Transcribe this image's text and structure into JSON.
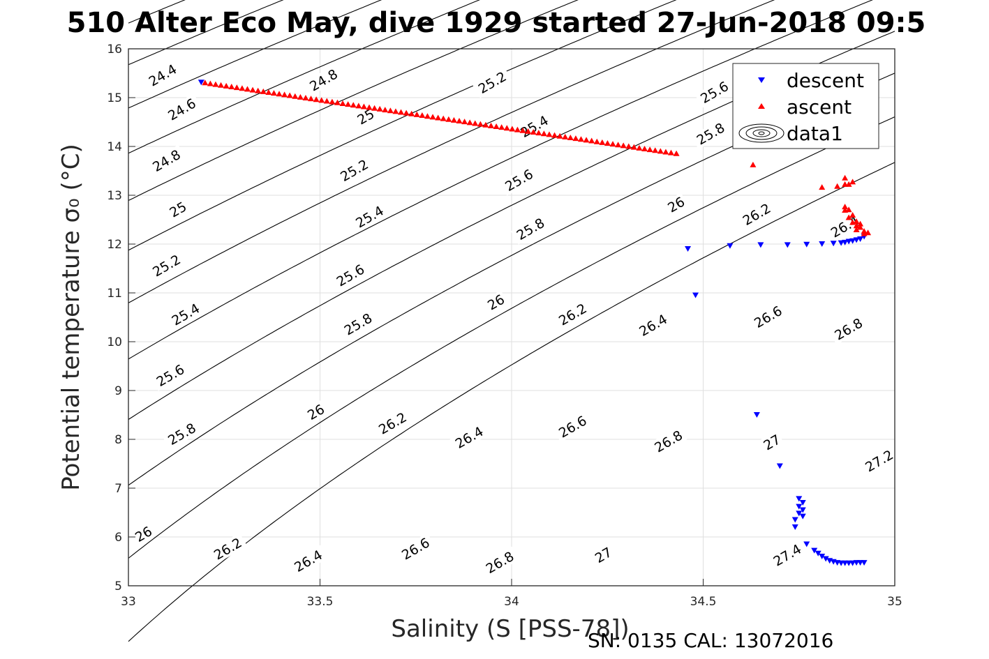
{
  "title": "510 Alter Eco May, dive 1929 started 27-Jun-2018 09:5",
  "footer": "SN: 0135  CAL: 13072016",
  "chart_data": {
    "type": "scatter",
    "title": "510 Alter Eco May, dive 1929 started 27-Jun-2018 09:5",
    "xlabel": "Salinity (S [PSS-78])",
    "ylabel": "Potential temperature σ₀ (°C)",
    "xlim": [
      33,
      35
    ],
    "ylim": [
      5,
      16
    ],
    "x_ticks": [
      33,
      33.5,
      34,
      34.5,
      35
    ],
    "x_tick_labels": [
      "33",
      "33.5",
      "34",
      "34.5",
      "35"
    ],
    "y_ticks": [
      5,
      6,
      7,
      8,
      9,
      10,
      11,
      12,
      13,
      14,
      15,
      16
    ],
    "y_tick_labels": [
      "5",
      "6",
      "7",
      "8",
      "9",
      "10",
      "11",
      "12",
      "13",
      "14",
      "15",
      "16"
    ],
    "grid": true,
    "legend_position": "top-right",
    "legend": [
      "descent",
      "ascent",
      "data1"
    ],
    "series": [
      {
        "name": "descent",
        "marker": "triangle-down",
        "color": "#0000ff",
        "points": [
          [
            33.19,
            15.31
          ],
          [
            34.46,
            11.9
          ],
          [
            34.48,
            10.95
          ],
          [
            34.57,
            11.96
          ],
          [
            34.65,
            11.98
          ],
          [
            34.72,
            11.98
          ],
          [
            34.77,
            11.99
          ],
          [
            34.81,
            12.0
          ],
          [
            34.84,
            12.01
          ],
          [
            34.86,
            12.02
          ],
          [
            34.87,
            12.03
          ],
          [
            34.88,
            12.05
          ],
          [
            34.89,
            12.06
          ],
          [
            34.9,
            12.08
          ],
          [
            34.91,
            12.1
          ],
          [
            34.92,
            12.15
          ],
          [
            34.64,
            8.5
          ],
          [
            34.7,
            7.45
          ],
          [
            34.75,
            6.78
          ],
          [
            34.76,
            6.7
          ],
          [
            34.75,
            6.62
          ],
          [
            34.76,
            6.55
          ],
          [
            34.75,
            6.48
          ],
          [
            34.76,
            6.42
          ],
          [
            34.74,
            6.35
          ],
          [
            34.74,
            6.2
          ],
          [
            34.77,
            5.85
          ],
          [
            34.79,
            5.72
          ],
          [
            34.8,
            5.66
          ],
          [
            34.81,
            5.6
          ],
          [
            34.82,
            5.55
          ],
          [
            34.83,
            5.51
          ],
          [
            34.84,
            5.49
          ],
          [
            34.85,
            5.47
          ],
          [
            34.86,
            5.46
          ],
          [
            34.87,
            5.46
          ],
          [
            34.88,
            5.46
          ],
          [
            34.89,
            5.46
          ],
          [
            34.9,
            5.47
          ],
          [
            34.91,
            5.47
          ],
          [
            34.92,
            5.47
          ]
        ]
      },
      {
        "name": "ascent",
        "marker": "triangle-up",
        "color": "#ff0000",
        "line_from": [
          33.2,
          15.31
        ],
        "line_to": [
          34.43,
          13.86
        ],
        "line_count": 90,
        "points": [
          [
            34.63,
            13.63
          ],
          [
            34.81,
            13.17
          ],
          [
            34.85,
            13.19
          ],
          [
            34.87,
            13.23
          ],
          [
            34.87,
            13.36
          ],
          [
            34.89,
            13.28
          ],
          [
            34.88,
            13.23
          ],
          [
            34.87,
            12.77
          ],
          [
            34.88,
            12.71
          ],
          [
            34.87,
            12.7
          ],
          [
            34.89,
            12.6
          ],
          [
            34.88,
            12.55
          ],
          [
            34.89,
            12.45
          ],
          [
            34.9,
            12.38
          ],
          [
            34.9,
            12.3
          ],
          [
            34.91,
            12.35
          ],
          [
            34.92,
            12.27
          ],
          [
            34.92,
            12.22
          ],
          [
            34.93,
            12.24
          ],
          [
            34.91,
            12.42
          ],
          [
            34.9,
            12.47
          ]
        ]
      }
    ],
    "density_contours": {
      "levels": [
        24.4,
        24.6,
        24.8,
        25,
        25.2,
        25.4,
        25.6,
        25.8,
        26,
        26.2,
        26.4,
        26.6,
        26.8,
        27,
        27.2,
        27.4
      ],
      "labels": [
        {
          "text": "24.4",
          "s": 33.09,
          "t": 15.45
        },
        {
          "text": "24.6",
          "s": 33.14,
          "t": 14.75
        },
        {
          "text": "24.8",
          "s": 33.1,
          "t": 13.7
        },
        {
          "text": "25",
          "s": 33.13,
          "t": 12.7
        },
        {
          "text": "25.2",
          "s": 33.1,
          "t": 11.55
        },
        {
          "text": "25.4",
          "s": 33.15,
          "t": 10.55
        },
        {
          "text": "25.6",
          "s": 33.11,
          "t": 9.3
        },
        {
          "text": "25.8",
          "s": 33.14,
          "t": 8.1
        },
        {
          "text": "26",
          "s": 33.04,
          "t": 6.05
        },
        {
          "text": "26.2",
          "s": 33.26,
          "t": 5.75
        },
        {
          "text": "26.4",
          "s": 33.47,
          "t": 5.5
        },
        {
          "text": "26.6",
          "s": 33.75,
          "t": 5.75
        },
        {
          "text": "26.8",
          "s": 33.97,
          "t": 5.47
        },
        {
          "text": "27",
          "s": 34.24,
          "t": 5.62
        },
        {
          "text": "27.4",
          "s": 34.72,
          "t": 5.62
        },
        {
          "text": "24.8",
          "s": 33.51,
          "t": 15.35
        },
        {
          "text": "25",
          "s": 33.62,
          "t": 14.6
        },
        {
          "text": "25.2",
          "s": 33.59,
          "t": 13.5
        },
        {
          "text": "25.4",
          "s": 33.63,
          "t": 12.55
        },
        {
          "text": "25.6",
          "s": 33.58,
          "t": 11.35
        },
        {
          "text": "25.8",
          "s": 33.6,
          "t": 10.35
        },
        {
          "text": "26",
          "s": 33.49,
          "t": 8.55
        },
        {
          "text": "26.2",
          "s": 33.69,
          "t": 8.32
        },
        {
          "text": "26.4",
          "s": 33.89,
          "t": 8.03
        },
        {
          "text": "26.6",
          "s": 34.16,
          "t": 8.25
        },
        {
          "text": "26.8",
          "s": 34.41,
          "t": 7.95
        },
        {
          "text": "27",
          "s": 34.68,
          "t": 7.93
        },
        {
          "text": "27.2",
          "s": 34.96,
          "t": 7.55
        },
        {
          "text": "25.2",
          "s": 33.95,
          "t": 15.3
        },
        {
          "text": "25.4",
          "s": 34.06,
          "t": 14.4
        },
        {
          "text": "25.6",
          "s": 34.02,
          "t": 13.3
        },
        {
          "text": "25.8",
          "s": 34.05,
          "t": 12.3
        },
        {
          "text": "26",
          "s": 33.96,
          "t": 10.8
        },
        {
          "text": "26.2",
          "s": 34.16,
          "t": 10.55
        },
        {
          "text": "26.4",
          "s": 34.37,
          "t": 10.33
        },
        {
          "text": "26.6",
          "s": 34.67,
          "t": 10.5
        },
        {
          "text": "26.8",
          "s": 34.88,
          "t": 10.25
        },
        {
          "text": "25.6",
          "s": 34.53,
          "t": 15.1
        },
        {
          "text": "25.8",
          "s": 34.52,
          "t": 14.25
        },
        {
          "text": "26",
          "s": 34.43,
          "t": 12.8
        },
        {
          "text": "26.2",
          "s": 34.64,
          "t": 12.6
        },
        {
          "text": "26.4",
          "s": 34.87,
          "t": 12.35
        }
      ]
    }
  }
}
